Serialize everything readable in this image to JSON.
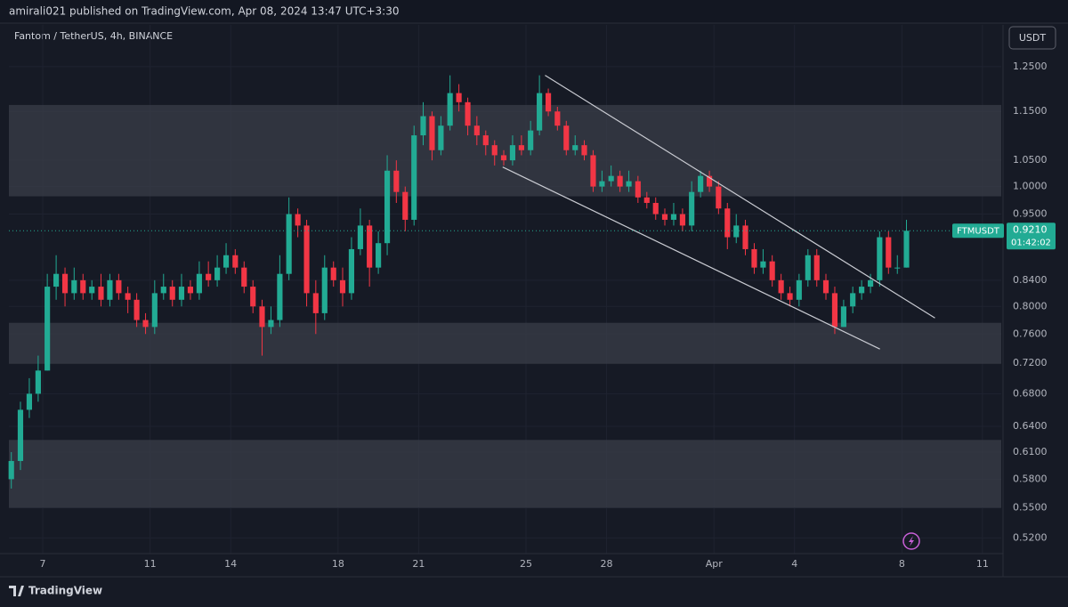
{
  "chart_data": {
    "type": "candlestick",
    "header": "amirali021 published on TradingView.com, Apr 08, 2024 13:47 UTC+3:30",
    "title": "Fantom / TetherUS, 4h, BINANCE",
    "currency": "USDT",
    "symbol": "FTMUSDT",
    "countdown": "01:42:02",
    "brand": "TradingView",
    "log_scale": true,
    "grid": true,
    "up_color": "#22ab94",
    "down_color": "#f23645",
    "zone_color": "#3a3d48",
    "line_color": "#c9cbd2",
    "last_price": {
      "value": 0.921,
      "label": "0.9210"
    },
    "ylim": [
      0.505,
      1.351
    ],
    "xlim": [
      5.74,
      42.7
    ],
    "yticks": [
      {
        "value": 1.25,
        "label": "1.2500"
      },
      {
        "value": 1.15,
        "label": "1.1500"
      },
      {
        "value": 1.05,
        "label": "1.0500"
      },
      {
        "value": 1.0,
        "label": "1.0000"
      },
      {
        "value": 0.95,
        "label": "0.9500"
      },
      {
        "value": 0.84,
        "label": "0.8400"
      },
      {
        "value": 0.8,
        "label": "0.8000"
      },
      {
        "value": 0.76,
        "label": "0.7600"
      },
      {
        "value": 0.72,
        "label": "0.7200"
      },
      {
        "value": 0.68,
        "label": "0.6800"
      },
      {
        "value": 0.64,
        "label": "0.6400"
      },
      {
        "value": 0.61,
        "label": "0.6100"
      },
      {
        "value": 0.58,
        "label": "0.5800"
      },
      {
        "value": 0.55,
        "label": "0.5500"
      },
      {
        "value": 0.52,
        "label": "0.5200"
      }
    ],
    "xticks": [
      7,
      11,
      14,
      18,
      21,
      25,
      28,
      {
        "value": 32,
        "label": "Apr"
      },
      {
        "value": 35,
        "label": "4"
      },
      {
        "value": 39,
        "label": "8"
      },
      {
        "value": 42,
        "label": "11"
      }
    ],
    "zones": [
      {
        "from": 0.982,
        "to": 1.164
      },
      {
        "from": 0.719,
        "to": 0.776
      },
      {
        "from": 0.55,
        "to": 0.624
      }
    ],
    "trendlines": [
      {
        "x": [
          25.71,
          40.23
        ],
        "y": [
          1.23,
          0.783
        ]
      },
      {
        "x": [
          24.13,
          38.18
        ],
        "y": [
          1.037,
          0.739
        ]
      }
    ],
    "x": [
      5.83,
      6.17,
      6.5,
      6.83,
      7.17,
      7.5,
      7.83,
      8.17,
      8.5,
      8.83,
      9.17,
      9.5,
      9.83,
      10.17,
      10.5,
      10.83,
      11.17,
      11.5,
      11.83,
      12.17,
      12.5,
      12.83,
      13.17,
      13.5,
      13.83,
      14.17,
      14.5,
      14.83,
      15.17,
      15.5,
      15.83,
      16.17,
      16.5,
      16.83,
      17.17,
      17.5,
      17.83,
      18.17,
      18.5,
      18.83,
      19.17,
      19.5,
      19.83,
      20.17,
      20.5,
      20.83,
      21.17,
      21.5,
      21.83,
      22.17,
      22.5,
      22.83,
      23.17,
      23.5,
      23.83,
      24.17,
      24.5,
      24.83,
      25.17,
      25.5,
      25.83,
      26.17,
      26.5,
      26.83,
      27.17,
      27.5,
      27.83,
      28.17,
      28.5,
      28.83,
      29.17,
      29.5,
      29.83,
      30.17,
      30.5,
      30.83,
      31.17,
      31.5,
      31.83,
      32.17,
      32.5,
      32.83,
      33.17,
      33.5,
      33.83,
      34.17,
      34.5,
      34.83,
      35.17,
      35.5,
      35.83,
      36.17,
      36.5,
      36.83,
      37.17,
      37.5,
      37.83,
      38.17,
      38.5,
      38.83,
      39.17
    ],
    "open": [
      0.58,
      0.6,
      0.66,
      0.68,
      0.71,
      0.83,
      0.85,
      0.82,
      0.84,
      0.82,
      0.83,
      0.81,
      0.84,
      0.82,
      0.81,
      0.78,
      0.77,
      0.82,
      0.83,
      0.81,
      0.83,
      0.82,
      0.85,
      0.84,
      0.86,
      0.88,
      0.86,
      0.83,
      0.8,
      0.77,
      0.78,
      0.85,
      0.95,
      0.93,
      0.82,
      0.79,
      0.86,
      0.84,
      0.82,
      0.89,
      0.93,
      0.86,
      0.9,
      1.03,
      0.99,
      0.94,
      1.1,
      1.14,
      1.07,
      1.12,
      1.19,
      1.17,
      1.12,
      1.1,
      1.08,
      1.06,
      1.05,
      1.08,
      1.07,
      1.11,
      1.19,
      1.15,
      1.12,
      1.07,
      1.08,
      1.06,
      1.0,
      1.01,
      1.02,
      1.0,
      1.01,
      0.98,
      0.97,
      0.95,
      0.94,
      0.95,
      0.93,
      0.99,
      1.02,
      1.0,
      0.96,
      0.91,
      0.93,
      0.89,
      0.86,
      0.87,
      0.84,
      0.82,
      0.81,
      0.84,
      0.88,
      0.84,
      0.82,
      0.77,
      0.8,
      0.82,
      0.83,
      0.84,
      0.91,
      0.86,
      0.86
    ],
    "high": [
      0.61,
      0.67,
      0.7,
      0.73,
      0.85,
      0.88,
      0.86,
      0.86,
      0.85,
      0.84,
      0.85,
      0.85,
      0.85,
      0.83,
      0.82,
      0.79,
      0.84,
      0.85,
      0.84,
      0.85,
      0.84,
      0.87,
      0.87,
      0.88,
      0.9,
      0.89,
      0.87,
      0.84,
      0.81,
      0.8,
      0.88,
      0.98,
      0.96,
      0.94,
      0.84,
      0.88,
      0.87,
      0.86,
      0.91,
      0.96,
      0.94,
      0.92,
      1.06,
      1.05,
      1.0,
      1.12,
      1.17,
      1.15,
      1.14,
      1.23,
      1.21,
      1.18,
      1.14,
      1.11,
      1.09,
      1.07,
      1.1,
      1.1,
      1.13,
      1.23,
      1.2,
      1.16,
      1.13,
      1.1,
      1.09,
      1.07,
      1.03,
      1.04,
      1.03,
      1.03,
      1.02,
      0.99,
      0.98,
      0.96,
      0.97,
      0.96,
      1.01,
      1.03,
      1.03,
      1.01,
      0.97,
      0.95,
      0.94,
      0.9,
      0.89,
      0.88,
      0.85,
      0.83,
      0.85,
      0.89,
      0.89,
      0.85,
      0.83,
      0.81,
      0.83,
      0.84,
      0.85,
      0.92,
      0.92,
      0.88,
      0.94
    ],
    "low": [
      0.57,
      0.59,
      0.65,
      0.67,
      0.71,
      0.81,
      0.8,
      0.81,
      0.81,
      0.81,
      0.8,
      0.8,
      0.81,
      0.79,
      0.77,
      0.76,
      0.76,
      0.81,
      0.8,
      0.8,
      0.81,
      0.81,
      0.83,
      0.83,
      0.85,
      0.85,
      0.82,
      0.79,
      0.73,
      0.76,
      0.77,
      0.84,
      0.91,
      0.8,
      0.76,
      0.78,
      0.83,
      0.8,
      0.81,
      0.88,
      0.83,
      0.85,
      0.88,
      0.97,
      0.92,
      0.93,
      1.08,
      1.05,
      1.06,
      1.11,
      1.15,
      1.1,
      1.08,
      1.06,
      1.04,
      1.04,
      1.04,
      1.06,
      1.06,
      1.1,
      1.14,
      1.11,
      1.06,
      1.06,
      1.05,
      0.99,
      0.99,
      1.0,
      0.99,
      0.99,
      0.97,
      0.96,
      0.94,
      0.93,
      0.93,
      0.92,
      0.92,
      0.98,
      0.99,
      0.95,
      0.89,
      0.9,
      0.88,
      0.85,
      0.85,
      0.83,
      0.81,
      0.8,
      0.8,
      0.83,
      0.83,
      0.81,
      0.76,
      0.77,
      0.79,
      0.81,
      0.82,
      0.83,
      0.85,
      0.85,
      0.86
    ],
    "close": [
      0.6,
      0.66,
      0.68,
      0.71,
      0.83,
      0.85,
      0.82,
      0.84,
      0.82,
      0.83,
      0.81,
      0.84,
      0.82,
      0.81,
      0.78,
      0.77,
      0.82,
      0.83,
      0.81,
      0.83,
      0.82,
      0.85,
      0.84,
      0.86,
      0.88,
      0.86,
      0.83,
      0.8,
      0.77,
      0.78,
      0.85,
      0.95,
      0.93,
      0.82,
      0.79,
      0.86,
      0.84,
      0.82,
      0.89,
      0.93,
      0.86,
      0.9,
      1.03,
      0.99,
      0.94,
      1.1,
      1.14,
      1.07,
      1.12,
      1.19,
      1.17,
      1.12,
      1.1,
      1.08,
      1.06,
      1.05,
      1.08,
      1.07,
      1.11,
      1.19,
      1.15,
      1.12,
      1.07,
      1.08,
      1.06,
      1.0,
      1.01,
      1.02,
      1.0,
      1.01,
      0.98,
      0.97,
      0.95,
      0.94,
      0.95,
      0.93,
      0.99,
      1.02,
      1.0,
      0.96,
      0.91,
      0.93,
      0.89,
      0.86,
      0.87,
      0.84,
      0.82,
      0.81,
      0.84,
      0.88,
      0.84,
      0.82,
      0.77,
      0.8,
      0.82,
      0.83,
      0.84,
      0.91,
      0.86,
      0.86,
      0.921
    ]
  }
}
